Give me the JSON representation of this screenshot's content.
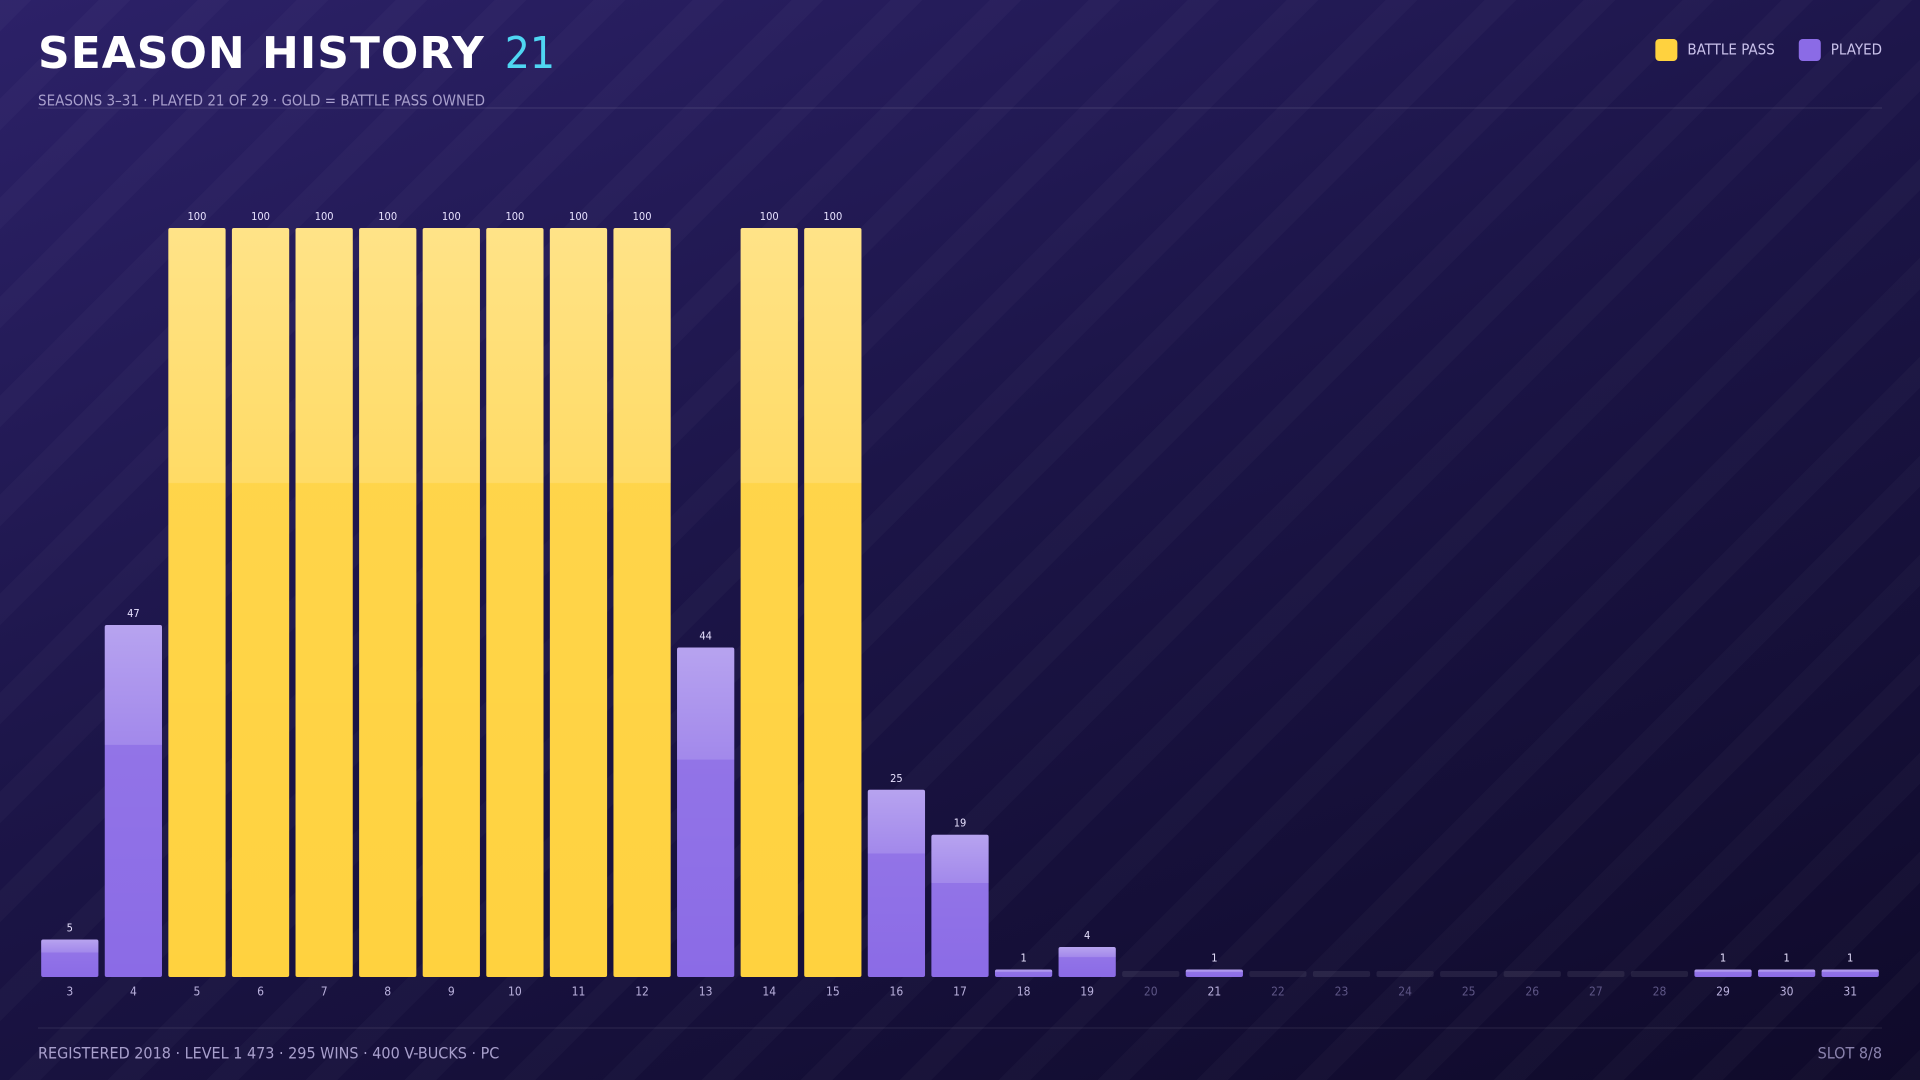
{
  "chart_data": {
    "type": "bar",
    "title": "SEASON HISTORY",
    "title_count": "21",
    "subtitle": "SEASONS 3–31 · PLAYED 21 OF 29 · GOLD = BATTLE PASS OWNED",
    "footer": "REGISTERED 2018 · LEVEL 1 473 · 295 WINS · 400 V-BUCKS · PC",
    "slot": "SLOT 8/8",
    "categories": [
      "3",
      "4",
      "5",
      "6",
      "7",
      "8",
      "9",
      "10",
      "11",
      "12",
      "13",
      "14",
      "15",
      "16",
      "17",
      "18",
      "19",
      "20",
      "21",
      "22",
      "23",
      "24",
      "25",
      "26",
      "27",
      "28",
      "29",
      "30",
      "31"
    ],
    "series": [
      {
        "name": "BATTLE PASS",
        "color": "#ffd23f",
        "values": [
          null,
          null,
          100,
          100,
          100,
          100,
          100,
          100,
          100,
          100,
          null,
          100,
          100,
          null,
          null,
          null,
          null,
          null,
          null,
          null,
          null,
          null,
          null,
          null,
          null,
          null,
          null,
          null,
          null
        ]
      },
      {
        "name": "PLAYED",
        "color": "#8b6be6",
        "values": [
          5,
          47,
          null,
          null,
          null,
          null,
          null,
          null,
          null,
          null,
          44,
          null,
          null,
          25,
          19,
          1,
          4,
          null,
          1,
          null,
          null,
          null,
          null,
          null,
          null,
          null,
          1,
          1,
          1
        ]
      }
    ],
    "ylim": [
      0,
      100
    ]
  }
}
